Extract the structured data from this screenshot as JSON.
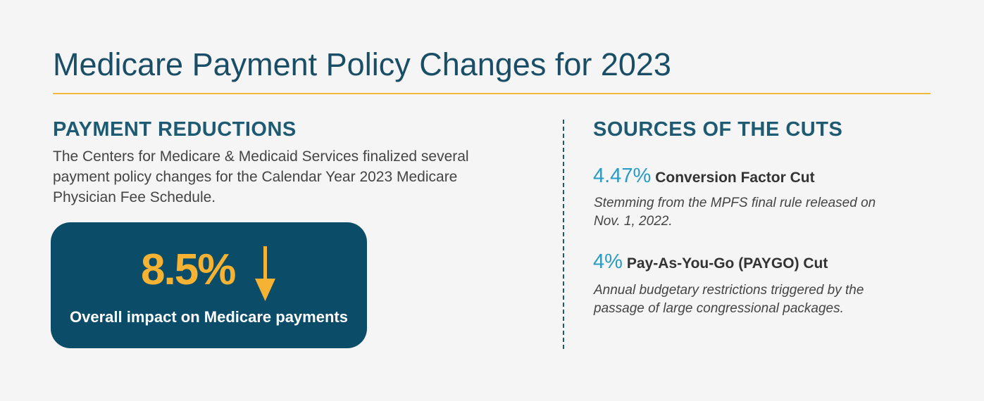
{
  "title": "Medicare Payment Policy Changes for 2023",
  "left": {
    "heading": "PAYMENT REDUCTIONS",
    "paragraph": [
      "The Centers for Medicare & Medicaid Services finalized several",
      "payment policy changes for the Calendar Year 2023 Medicare",
      "Physician Fee Schedule."
    ],
    "callout": {
      "figure": "8.5%",
      "caption": "Overall impact on Medicare payments"
    }
  },
  "right": {
    "heading": "SOURCES OF THE CUTS",
    "items": [
      {
        "figure": "4.47%",
        "label": "Conversion Factor Cut",
        "description": [
          "Stemming from the MPFS final rule released on",
          "Nov. 1, 2022."
        ]
      },
      {
        "figure": "4%",
        "label": "Pay-As-You-Go (PAYGO) Cut",
        "description": [
          "Annual budgetary restrictions triggered by the",
          "passage of large congressional packages."
        ]
      }
    ]
  }
}
